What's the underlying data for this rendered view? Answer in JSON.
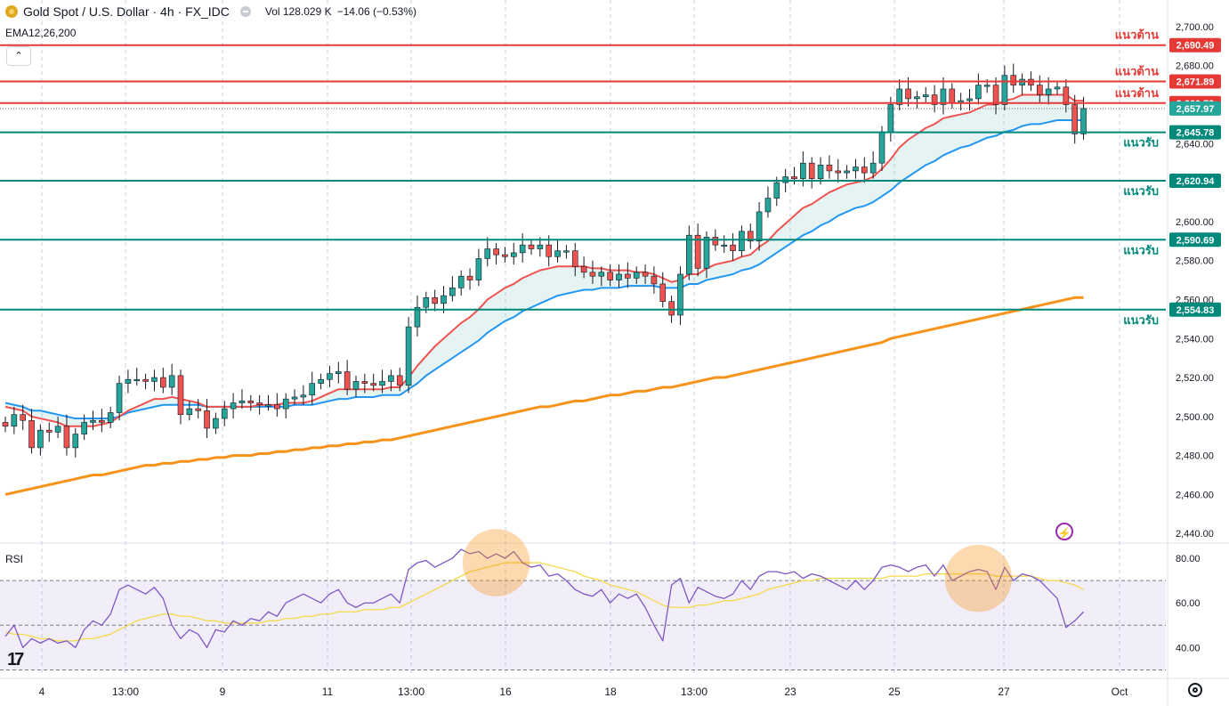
{
  "header": {
    "symbol": "Gold Spot / U.S. Dollar · 4h · FX_IDC",
    "volume": "Vol 128.029 K",
    "change": "−14.06 (−0.53%)",
    "indicator": "EMA12,26,200",
    "collapse_icon": "chevron-up-icon"
  },
  "rsi_label": "RSI",
  "colors": {
    "up": "#26a69a",
    "down": "#ef5350",
    "ema_fast": "#ef5350",
    "ema_mid": "#2196f3",
    "ema_slow": "#f7931a",
    "resistance": "#e53935",
    "support": "#00897b",
    "rsi": "#7e57c2",
    "rsi_ma": "#f5d94b"
  },
  "chart_data": [
    {
      "type": "candlestick",
      "title": "Gold Spot / U.S. Dollar · 4h · FX_IDC",
      "ylim": [
        2436,
        2710
      ],
      "y_ticks": [
        "2,700.00",
        "2,680.00",
        "2,660.00",
        "2,640.00",
        "2,620.00",
        "2,600.00",
        "2,580.00",
        "2,560.00",
        "2,540.00",
        "2,520.00",
        "2,500.00",
        "2,480.00",
        "2,460.00",
        "2,440.00"
      ],
      "x_ticks": [
        "4",
        "13:00",
        "9",
        "11",
        "13:00",
        "16",
        "18",
        "13:00",
        "23",
        "25",
        "27",
        "Oct"
      ],
      "grid": true,
      "levels": [
        {
          "label": "แนวต้าน",
          "value": 2690.49,
          "price_label": "2,690.49",
          "kind": "resistance"
        },
        {
          "label": "แนวต้าน",
          "value": 2671.89,
          "price_label": "2,671.89",
          "kind": "resistance"
        },
        {
          "label": "แนวต้าน",
          "value": 2660.79,
          "price_label": "2,660.79",
          "kind": "resistance"
        },
        {
          "label": "",
          "value": 2657.97,
          "price_label": "2,657.97",
          "kind": "last"
        },
        {
          "label": "แนวรับ",
          "value": 2645.78,
          "price_label": "2,645.78",
          "kind": "support"
        },
        {
          "label": "แนวรับ",
          "value": 2620.94,
          "price_label": "2,620.94",
          "kind": "support"
        },
        {
          "label": "แนวรับ",
          "value": 2590.69,
          "price_label": "2,590.69",
          "kind": "support"
        },
        {
          "label": "แนวรับ",
          "value": 2554.83,
          "price_label": "2,554.83",
          "kind": "support"
        }
      ],
      "closes": [
        2495,
        2501,
        2498,
        2484,
        2493,
        2492,
        2495,
        2484,
        2491,
        2497,
        2498,
        2497,
        2502,
        2517,
        2519,
        2519,
        2518,
        2520,
        2515,
        2521,
        2501,
        2504,
        2503,
        2494,
        2499,
        2504,
        2507,
        2508,
        2507,
        2506,
        2506,
        2504,
        2509,
        2510,
        2511,
        2517,
        2519,
        2522,
        2523,
        2514,
        2518,
        2517,
        2516,
        2518,
        2521,
        2516,
        2546,
        2556,
        2561,
        2558,
        2562,
        2566,
        2572,
        2570,
        2581,
        2586,
        2583,
        2582,
        2584,
        2588,
        2586,
        2588,
        2582,
        2585,
        2585,
        2577,
        2574,
        2572,
        2574,
        2570,
        2573,
        2571,
        2574,
        2572,
        2568,
        2559,
        2552,
        2573,
        2593,
        2576,
        2592,
        2588,
        2588,
        2585,
        2595,
        2590,
        2605,
        2612,
        2620,
        2623,
        2622,
        2630,
        2622,
        2629,
        2626,
        2625,
        2626,
        2628,
        2625,
        2630,
        2646,
        2660,
        2668,
        2663,
        2664,
        2665,
        2660,
        2668,
        2661,
        2662,
        2663,
        2670,
        2670,
        2660,
        2675,
        2670,
        2673,
        2670,
        2665,
        2668,
        2669,
        2660,
        2645,
        2658
      ],
      "ema12": [
        2505,
        2504,
        2503,
        2500,
        2499,
        2498,
        2497,
        2495,
        2495,
        2495,
        2495,
        2496,
        2497,
        2500,
        2503,
        2505,
        2507,
        2509,
        2509,
        2510,
        2509,
        2508,
        2507,
        2505,
        2505,
        2505,
        2505,
        2505,
        2505,
        2506,
        2506,
        2506,
        2507,
        2507,
        2507,
        2508,
        2510,
        2512,
        2514,
        2514,
        2514,
        2514,
        2514,
        2514,
        2515,
        2515,
        2520,
        2526,
        2531,
        2536,
        2540,
        2544,
        2548,
        2551,
        2555,
        2560,
        2563,
        2566,
        2568,
        2571,
        2573,
        2575,
        2576,
        2577,
        2577,
        2577,
        2577,
        2576,
        2576,
        2575,
        2575,
        2575,
        2574,
        2574,
        2573,
        2571,
        2569,
        2570,
        2573,
        2573,
        2576,
        2578,
        2579,
        2580,
        2582,
        2583,
        2587,
        2590,
        2595,
        2599,
        2603,
        2607,
        2609,
        2612,
        2615,
        2617,
        2619,
        2620,
        2621,
        2623,
        2627,
        2632,
        2638,
        2642,
        2645,
        2648,
        2650,
        2653,
        2654,
        2655,
        2656,
        2658,
        2660,
        2660,
        2662,
        2663,
        2665,
        2665,
        2665,
        2665,
        2665,
        2665,
        2662,
        2662
      ],
      "ema26": [
        2507,
        2506,
        2505,
        2503,
        2503,
        2502,
        2501,
        2500,
        2499,
        2499,
        2499,
        2499,
        2499,
        2500,
        2502,
        2503,
        2504,
        2505,
        2506,
        2506,
        2506,
        2506,
        2506,
        2505,
        2505,
        2505,
        2505,
        2505,
        2505,
        2505,
        2505,
        2505,
        2505,
        2506,
        2506,
        2506,
        2507,
        2508,
        2509,
        2509,
        2510,
        2510,
        2510,
        2511,
        2511,
        2511,
        2514,
        2517,
        2521,
        2524,
        2527,
        2530,
        2533,
        2536,
        2539,
        2543,
        2546,
        2549,
        2551,
        2554,
        2556,
        2558,
        2560,
        2562,
        2563,
        2564,
        2565,
        2565,
        2566,
        2566,
        2566,
        2567,
        2567,
        2567,
        2567,
        2566,
        2566,
        2566,
        2568,
        2568,
        2570,
        2571,
        2572,
        2573,
        2575,
        2576,
        2578,
        2581,
        2584,
        2587,
        2590,
        2593,
        2595,
        2598,
        2600,
        2603,
        2605,
        2607,
        2608,
        2610,
        2613,
        2616,
        2620,
        2623,
        2626,
        2629,
        2631,
        2634,
        2636,
        2638,
        2639,
        2641,
        2643,
        2644,
        2646,
        2647,
        2649,
        2650,
        2650,
        2651,
        2652,
        2652,
        2652,
        2652
      ],
      "ema200": [
        2460,
        2461,
        2462,
        2463,
        2464,
        2465,
        2466,
        2467,
        2468,
        2469,
        2470,
        2470,
        2471,
        2472,
        2473,
        2474,
        2475,
        2475,
        2476,
        2476,
        2477,
        2477,
        2478,
        2478,
        2479,
        2479,
        2480,
        2480,
        2480,
        2481,
        2481,
        2482,
        2482,
        2483,
        2483,
        2484,
        2484,
        2485,
        2485,
        2486,
        2486,
        2487,
        2487,
        2488,
        2488,
        2489,
        2490,
        2491,
        2492,
        2493,
        2494,
        2495,
        2496,
        2497,
        2498,
        2499,
        2500,
        2501,
        2502,
        2503,
        2504,
        2505,
        2505,
        2506,
        2507,
        2508,
        2508,
        2509,
        2510,
        2511,
        2511,
        2512,
        2513,
        2513,
        2514,
        2515,
        2515,
        2516,
        2517,
        2518,
        2519,
        2520,
        2520,
        2521,
        2522,
        2523,
        2524,
        2525,
        2526,
        2527,
        2528,
        2529,
        2530,
        2531,
        2532,
        2533,
        2534,
        2535,
        2536,
        2537,
        2538,
        2540,
        2541,
        2542,
        2543,
        2544,
        2545,
        2546,
        2547,
        2548,
        2549,
        2550,
        2551,
        2552,
        2553,
        2554,
        2555,
        2556,
        2557,
        2558,
        2559,
        2560,
        2561,
        2561
      ]
    },
    {
      "type": "line",
      "title": "RSI",
      "ylim": [
        27,
        86
      ],
      "y_ticks": [
        "80.00",
        "60.00",
        "40.00"
      ],
      "bands": [
        30,
        50,
        70
      ],
      "rsi": [
        45,
        50,
        40,
        44,
        42,
        44,
        42,
        43,
        40,
        48,
        52,
        50,
        55,
        66,
        68,
        66,
        64,
        67,
        62,
        50,
        44,
        48,
        46,
        40,
        48,
        47,
        52,
        50,
        53,
        52,
        56,
        54,
        60,
        62,
        64,
        62,
        60,
        64,
        66,
        60,
        58,
        60,
        60,
        62,
        64,
        60,
        75,
        78,
        79,
        76,
        78,
        80,
        84,
        82,
        83,
        80,
        82,
        80,
        83,
        78,
        76,
        77,
        72,
        73,
        70,
        66,
        64,
        63,
        66,
        60,
        64,
        62,
        64,
        58,
        50,
        43,
        68,
        71,
        60,
        67,
        65,
        63,
        62,
        64,
        70,
        66,
        72,
        74,
        74,
        73,
        74,
        71,
        73,
        72,
        70,
        68,
        66,
        70,
        66,
        70,
        76,
        77,
        76,
        74,
        76,
        77,
        72,
        77,
        70,
        72,
        74,
        75,
        74,
        66,
        76,
        70,
        73,
        72,
        70,
        66,
        62,
        49,
        52,
        56
      ],
      "rsi_ma": [
        47,
        46,
        46,
        45,
        44,
        44,
        43,
        43,
        43,
        44,
        44,
        45,
        46,
        48,
        50,
        52,
        53,
        54,
        55,
        55,
        54,
        54,
        53,
        52,
        52,
        51,
        51,
        51,
        51,
        51,
        52,
        52,
        53,
        53,
        54,
        54,
        55,
        55,
        56,
        56,
        56,
        57,
        57,
        57,
        58,
        58,
        60,
        62,
        64,
        66,
        68,
        70,
        72,
        74,
        75,
        76,
        77,
        78,
        78,
        78,
        78,
        78,
        77,
        76,
        75,
        74,
        72,
        71,
        70,
        68,
        67,
        66,
        65,
        63,
        61,
        59,
        58,
        58,
        58,
        59,
        59,
        60,
        61,
        61,
        62,
        63,
        64,
        66,
        67,
        68,
        69,
        70,
        70,
        71,
        71,
        71,
        71,
        71,
        71,
        71,
        71,
        72,
        72,
        72,
        72,
        73,
        73,
        73,
        73,
        73,
        73,
        73,
        73,
        72,
        72,
        72,
        72,
        72,
        71,
        70,
        70,
        69,
        68,
        66
      ],
      "highlights": [
        {
          "index": 56
        },
        {
          "index": 111
        }
      ]
    }
  ]
}
